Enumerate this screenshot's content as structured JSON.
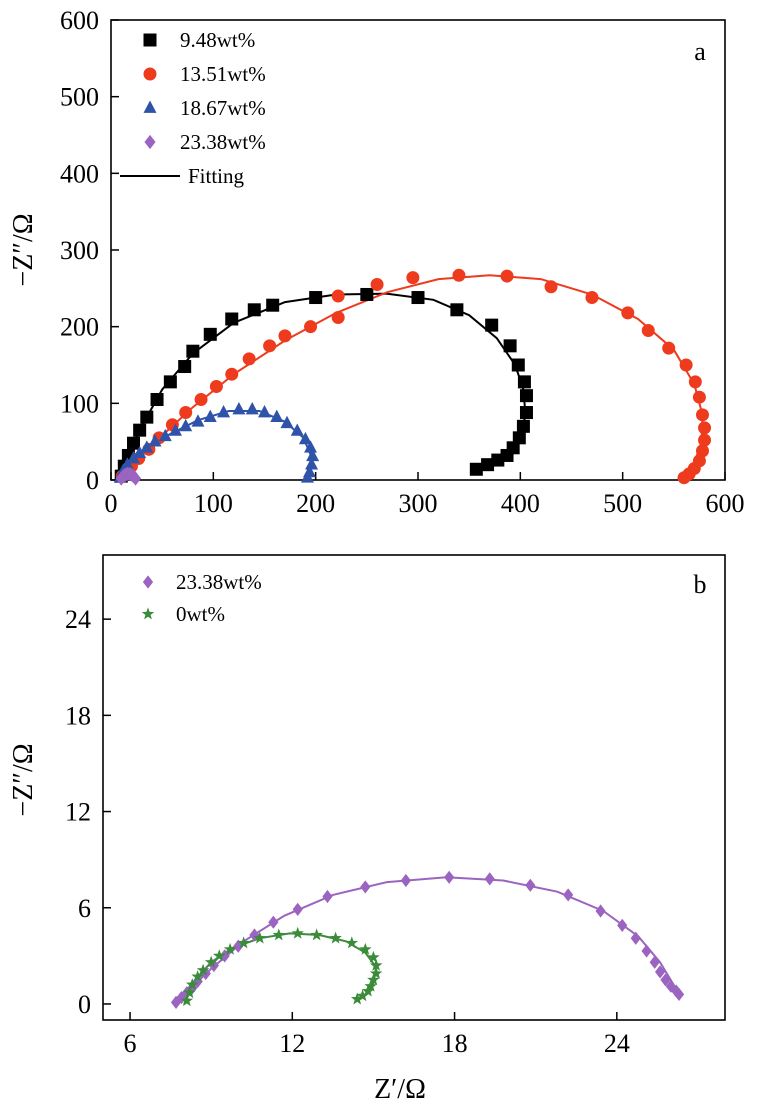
{
  "chart_data": [
    {
      "type": "scatter",
      "panel_label": "a",
      "xlabel": "",
      "ylabel": "−Z″/Ω",
      "xlim": [
        0,
        600
      ],
      "ylim": [
        0,
        600
      ],
      "xticks": [
        0,
        100,
        200,
        300,
        400,
        500,
        600
      ],
      "yticks": [
        0,
        100,
        200,
        300,
        400,
        500,
        600
      ],
      "xtick_labels": [
        "0",
        "100",
        "200",
        "300",
        "400",
        "500",
        "600"
      ],
      "ytick_labels": [
        "0",
        "100",
        "200",
        "300",
        "400",
        "500",
        "600"
      ],
      "grid": false,
      "legend_position": "top-left",
      "fit_label": "Fitting",
      "series": [
        {
          "name": "9.48wt%",
          "marker": "square",
          "color": "#000000",
          "points": [
            [
              10,
              5
            ],
            [
              13,
              18
            ],
            [
              17,
              32
            ],
            [
              22,
              48
            ],
            [
              28,
              65
            ],
            [
              35,
              82
            ],
            [
              45,
              105
            ],
            [
              58,
              128
            ],
            [
              72,
              148
            ],
            [
              80,
              168
            ],
            [
              97,
              190
            ],
            [
              118,
              210
            ],
            [
              140,
              222
            ],
            [
              158,
              228
            ],
            [
              200,
              238
            ],
            [
              250,
              242
            ],
            [
              300,
              238
            ],
            [
              338,
              222
            ],
            [
              372,
              202
            ],
            [
              390,
              175
            ],
            [
              398,
              150
            ],
            [
              404,
              128
            ],
            [
              406,
              110
            ],
            [
              406,
              88
            ],
            [
              403,
              70
            ],
            [
              399,
              55
            ],
            [
              393,
              42
            ],
            [
              387,
              32
            ],
            [
              378,
              26
            ],
            [
              368,
              20
            ],
            [
              357,
              14
            ]
          ],
          "fit": [
            [
              8,
              0
            ],
            [
              12,
              15
            ],
            [
              18,
              35
            ],
            [
              30,
              70
            ],
            [
              50,
              118
            ],
            [
              80,
              165
            ],
            [
              120,
              205
            ],
            [
              170,
              232
            ],
            [
              220,
              242
            ],
            [
              270,
              243
            ],
            [
              315,
              235
            ],
            [
              350,
              215
            ],
            [
              377,
              185
            ],
            [
              395,
              150
            ],
            [
              403,
              118
            ],
            [
              405,
              85
            ],
            [
              400,
              55
            ],
            [
              388,
              32
            ],
            [
              372,
              20
            ],
            [
              355,
              14
            ]
          ]
        },
        {
          "name": "13.51wt%",
          "marker": "circle",
          "color": "#ee3b1e",
          "points": [
            [
              11,
              5
            ],
            [
              20,
              18
            ],
            [
              27,
              28
            ],
            [
              37,
              40
            ],
            [
              47,
              55
            ],
            [
              60,
              72
            ],
            [
              73,
              88
            ],
            [
              88,
              105
            ],
            [
              103,
              122
            ],
            [
              118,
              138
            ],
            [
              135,
              158
            ],
            [
              155,
              175
            ],
            [
              170,
              188
            ],
            [
              195,
              200
            ],
            [
              222,
              212
            ],
            [
              222,
              240
            ],
            [
              260,
              255
            ],
            [
              295,
              264
            ],
            [
              340,
              267
            ],
            [
              387,
              266
            ],
            [
              430,
              252
            ],
            [
              470,
              238
            ],
            [
              505,
              218
            ],
            [
              525,
              195
            ],
            [
              545,
              172
            ],
            [
              562,
              150
            ],
            [
              571,
              128
            ],
            [
              575,
              108
            ],
            [
              578,
              85
            ],
            [
              580,
              68
            ],
            [
              580,
              52
            ],
            [
              578,
              38
            ],
            [
              575,
              25
            ],
            [
              570,
              15
            ],
            [
              565,
              8
            ],
            [
              560,
              3
            ]
          ],
          "fit": [
            [
              8,
              0
            ],
            [
              20,
              18
            ],
            [
              45,
              52
            ],
            [
              80,
              95
            ],
            [
              120,
              138
            ],
            [
              170,
              182
            ],
            [
              220,
              218
            ],
            [
              270,
              245
            ],
            [
              320,
              262
            ],
            [
              370,
              267
            ],
            [
              420,
              262
            ],
            [
              470,
              242
            ],
            [
              515,
              210
            ],
            [
              550,
              170
            ],
            [
              570,
              125
            ],
            [
              578,
              85
            ],
            [
              577,
              50
            ],
            [
              570,
              22
            ],
            [
              560,
              5
            ]
          ]
        },
        {
          "name": "18.67wt%",
          "marker": "triangle",
          "color": "#2e53a8",
          "points": [
            [
              9,
              3
            ],
            [
              12,
              12
            ],
            [
              16,
              20
            ],
            [
              22,
              28
            ],
            [
              28,
              35
            ],
            [
              35,
              42
            ],
            [
              43,
              50
            ],
            [
              53,
              57
            ],
            [
              63,
              64
            ],
            [
              73,
              70
            ],
            [
              85,
              76
            ],
            [
              97,
              82
            ],
            [
              110,
              88
            ],
            [
              125,
              92
            ],
            [
              138,
              92
            ],
            [
              150,
              88
            ],
            [
              162,
              82
            ],
            [
              172,
              74
            ],
            [
              182,
              64
            ],
            [
              190,
              53
            ],
            [
              195,
              42
            ],
            [
              197,
              31
            ],
            [
              196,
              20
            ],
            [
              194,
              10
            ],
            [
              192,
              3
            ]
          ],
          "fit": [
            [
              8,
              0
            ],
            [
              15,
              18
            ],
            [
              30,
              38
            ],
            [
              55,
              58
            ],
            [
              85,
              78
            ],
            [
              115,
              90
            ],
            [
              145,
              90
            ],
            [
              170,
              76
            ],
            [
              188,
              55
            ],
            [
              196,
              30
            ],
            [
              193,
              5
            ]
          ]
        },
        {
          "name": "23.38wt%",
          "marker": "diamond",
          "color": "#9a64c0",
          "points": [
            [
              10,
              2
            ],
            [
              12,
              5
            ],
            [
              14,
              7
            ],
            [
              16,
              8
            ],
            [
              18,
              8
            ],
            [
              20,
              7
            ],
            [
              22,
              5
            ],
            [
              24,
              2
            ]
          ],
          "fit": [
            [
              8,
              0
            ],
            [
              12,
              6
            ],
            [
              17,
              8
            ],
            [
              22,
              6
            ],
            [
              26,
              1
            ]
          ]
        }
      ]
    },
    {
      "type": "scatter",
      "panel_label": "b",
      "xlabel": "Z′/Ω",
      "ylabel": "−Z″/Ω",
      "xlim": [
        5,
        28
      ],
      "ylim": [
        -1,
        28
      ],
      "xticks": [
        6,
        12,
        18,
        24
      ],
      "yticks": [
        0,
        6,
        12,
        18,
        24
      ],
      "xtick_labels": [
        "6",
        "12",
        "18",
        "24"
      ],
      "ytick_labels": [
        "0",
        "6",
        "12",
        "18",
        "24"
      ],
      "grid": false,
      "legend_position": "top-left",
      "series": [
        {
          "name": "23.38wt%",
          "marker": "diamond",
          "color": "#9a64c0",
          "points": [
            [
              7.7,
              0.1
            ],
            [
              7.9,
              0.4
            ],
            [
              8.1,
              0.7
            ],
            [
              8.3,
              1.0
            ],
            [
              8.5,
              1.4
            ],
            [
              8.8,
              1.9
            ],
            [
              9.1,
              2.4
            ],
            [
              9.5,
              3.0
            ],
            [
              10.0,
              3.6
            ],
            [
              10.6,
              4.3
            ],
            [
              11.3,
              5.1
            ],
            [
              12.2,
              5.9
            ],
            [
              13.3,
              6.7
            ],
            [
              14.7,
              7.3
            ],
            [
              16.2,
              7.7
            ],
            [
              17.8,
              7.9
            ],
            [
              19.3,
              7.8
            ],
            [
              20.8,
              7.4
            ],
            [
              22.2,
              6.8
            ],
            [
              23.4,
              5.8
            ],
            [
              24.2,
              4.9
            ],
            [
              24.7,
              4.1
            ],
            [
              25.1,
              3.3
            ],
            [
              25.4,
              2.6
            ],
            [
              25.6,
              2.0
            ],
            [
              25.8,
              1.5
            ],
            [
              26.0,
              1.1
            ],
            [
              26.2,
              0.8
            ],
            [
              26.3,
              0.6
            ]
          ],
          "fit": [
            [
              7.6,
              0.0
            ],
            [
              8.2,
              0.9
            ],
            [
              9.0,
              2.2
            ],
            [
              10.2,
              3.9
            ],
            [
              11.7,
              5.5
            ],
            [
              13.5,
              6.8
            ],
            [
              15.5,
              7.6
            ],
            [
              17.7,
              7.9
            ],
            [
              19.8,
              7.7
            ],
            [
              21.8,
              7.0
            ],
            [
              23.5,
              5.8
            ],
            [
              24.8,
              4.2
            ],
            [
              25.6,
              2.6
            ],
            [
              26.1,
              1.2
            ],
            [
              26.3,
              0.6
            ]
          ]
        },
        {
          "name": "0wt%",
          "marker": "star",
          "color": "#3a8c3a",
          "points": [
            [
              8.1,
              0.2
            ],
            [
              8.2,
              0.7
            ],
            [
              8.3,
              1.2
            ],
            [
              8.5,
              1.7
            ],
            [
              8.7,
              2.1
            ],
            [
              9.0,
              2.6
            ],
            [
              9.3,
              3.0
            ],
            [
              9.7,
              3.4
            ],
            [
              10.2,
              3.8
            ],
            [
              10.8,
              4.1
            ],
            [
              11.5,
              4.3
            ],
            [
              12.2,
              4.4
            ],
            [
              12.9,
              4.3
            ],
            [
              13.6,
              4.1
            ],
            [
              14.2,
              3.8
            ],
            [
              14.7,
              3.4
            ],
            [
              15.0,
              2.9
            ],
            [
              15.1,
              2.4
            ],
            [
              15.1,
              1.9
            ],
            [
              15.0,
              1.5
            ],
            [
              14.9,
              1.1
            ],
            [
              14.8,
              0.8
            ],
            [
              14.6,
              0.5
            ],
            [
              14.4,
              0.3
            ]
          ],
          "fit": [
            [
              8.0,
              0.0
            ],
            [
              8.4,
              1.5
            ],
            [
              9.0,
              2.6
            ],
            [
              9.8,
              3.5
            ],
            [
              10.8,
              4.1
            ],
            [
              11.9,
              4.4
            ],
            [
              13.0,
              4.3
            ],
            [
              14.0,
              3.9
            ],
            [
              14.7,
              3.2
            ],
            [
              15.1,
              2.3
            ],
            [
              15.0,
              1.3
            ],
            [
              14.7,
              0.6
            ],
            [
              14.4,
              0.3
            ]
          ]
        }
      ]
    }
  ]
}
